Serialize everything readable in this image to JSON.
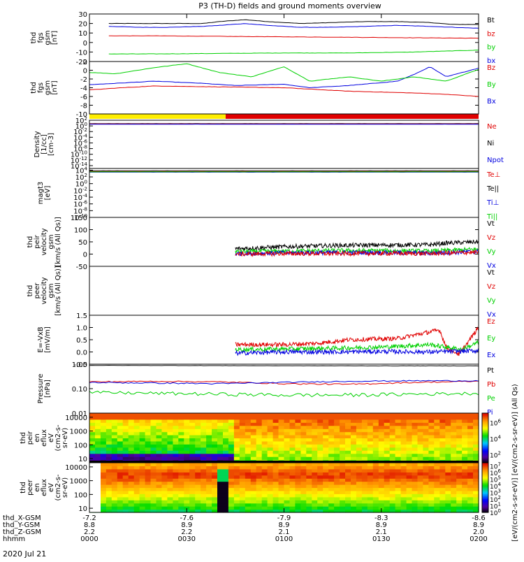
{
  "title": "P3 (TH-D) fields and ground moments overview",
  "date_label": "2020 Jul 21",
  "colors": {
    "black": "#000000",
    "red": "#e00000",
    "green": "#00d000",
    "blue": "#0000e0",
    "yellow": "#ffee00",
    "orange": "#ff9900"
  },
  "chart_data": {
    "type": "line",
    "x_range": [
      0,
      120
    ],
    "x_unit": "minutes since 00:00 UT",
    "bottom_axis": {
      "ticks_minutes": [
        0,
        30,
        60,
        90,
        120
      ],
      "row_labels": [
        "thd_X-GSM",
        "thd_Y-GSM",
        "thd_Z-GSM",
        "hhmm"
      ],
      "columns": [
        [
          "-7.2",
          "8.8",
          "2.2",
          "0000"
        ],
        [
          "-7.6",
          "8.9",
          "2.2",
          "0030"
        ],
        [
          "-7.9",
          "8.9",
          "2.1",
          "0100"
        ],
        [
          "-8.3",
          "8.9",
          "2.1",
          "0130"
        ],
        [
          "-8.6",
          "8.9",
          "2.0",
          "0200"
        ]
      ]
    },
    "mode_bar": [
      {
        "start": 0,
        "end": 42,
        "color": "yellow"
      },
      {
        "start": 42,
        "end": 120,
        "color": "red"
      }
    ],
    "panels": [
      {
        "ylabel": [
          "thd",
          "fgs",
          "gsm",
          "[nT]"
        ],
        "scale": "linear",
        "ylim": [
          -20,
          30
        ],
        "yticks": [
          -20,
          -10,
          0,
          10,
          20,
          30
        ],
        "ytick_labels": [
          "-20",
          "-10",
          "0",
          "10",
          "20",
          "30"
        ],
        "legend": [
          [
            "Bt",
            "black"
          ],
          [
            "bz",
            "red"
          ],
          [
            "by",
            "green"
          ],
          [
            "bx",
            "blue"
          ]
        ],
        "series": [
          {
            "name": "Bt",
            "color": "black",
            "x": [
              6,
              15,
              25,
              35,
              40,
              48,
              55,
              65,
              75,
              85,
              95,
              105,
              112,
              120
            ],
            "y": [
              20,
              20,
              20,
              20,
              22,
              24,
              22,
              20,
              21,
              22,
              22,
              21,
              19,
              19
            ]
          },
          {
            "name": "bx",
            "color": "blue",
            "x": [
              6,
              15,
              25,
              35,
              40,
              48,
              55,
              65,
              75,
              85,
              95,
              105,
              112,
              120
            ],
            "y": [
              17,
              16,
              16,
              17,
              18,
              20,
              18,
              16,
              16,
              17,
              18,
              17,
              16,
              15
            ]
          },
          {
            "name": "bz",
            "color": "red",
            "x": [
              6,
              20,
              40,
              60,
              80,
              100,
              120
            ],
            "y": [
              7,
              7,
              6.5,
              6,
              5.5,
              5,
              4.5
            ]
          },
          {
            "name": "by",
            "color": "green",
            "x": [
              6,
              20,
              40,
              60,
              80,
              100,
              120
            ],
            "y": [
              -12,
              -12,
              -11.5,
              -11,
              -11,
              -10,
              -8
            ]
          }
        ]
      },
      {
        "ylabel": [
          "thd",
          "fgs",
          "gsm",
          "[nT]"
        ],
        "scale": "linear",
        "ylim": [
          -10,
          2
        ],
        "yticks": [
          -10,
          -8,
          -6,
          -4,
          -2,
          0,
          2
        ],
        "ytick_labels": [
          "-10",
          "-8",
          "-6",
          "-4",
          "-2",
          "0",
          "2"
        ],
        "legend": [
          [
            "Bz",
            "red"
          ],
          [
            "By",
            "green"
          ],
          [
            "Bx",
            "blue"
          ]
        ],
        "series": [
          {
            "name": "Bx",
            "color": "blue",
            "x": [
              0,
              8,
              20,
              35,
              45,
              60,
              68,
              80,
              95,
              100,
              105,
              110,
              120
            ],
            "y": [
              -3.3,
              -3.0,
              -2.5,
              -3.0,
              -3.5,
              -3.2,
              -4.0,
              -3.5,
              -2.5,
              -1.0,
              0.8,
              -1.5,
              0.5
            ]
          },
          {
            "name": "By",
            "color": "green",
            "x": [
              0,
              8,
              20,
              30,
              40,
              50,
              60,
              68,
              80,
              90,
              100,
              110,
              120
            ],
            "y": [
              -0.5,
              -0.8,
              0.6,
              1.5,
              -0.5,
              -1.5,
              0.8,
              -2.5,
              -1.5,
              -2.5,
              -1.5,
              -2.5,
              0.2
            ]
          },
          {
            "name": "Bz",
            "color": "red",
            "x": [
              0,
              10,
              20,
              40,
              60,
              80,
              100,
              110,
              120
            ],
            "y": [
              -4.5,
              -4.0,
              -3.6,
              -3.8,
              -4.0,
              -4.8,
              -5.2,
              -5.5,
              -6.0
            ]
          }
        ]
      },
      {
        "ylabel": [
          "Density",
          "[1/cc]",
          "[cm-3]"
        ],
        "scale": "log",
        "ylim_exp": [
          -15,
          2
        ],
        "ytick_exps": [
          2,
          0,
          -2,
          -4,
          -6,
          -8,
          -10,
          -12,
          -14
        ],
        "legend": [
          [
            "Ne",
            "red"
          ],
          [
            "Ni",
            "black"
          ],
          [
            "Npot",
            "blue"
          ]
        ],
        "series": [
          {
            "name": "Ni",
            "color": "black",
            "x": [
              0,
              120
            ],
            "y_exp": [
              0.8,
              0.8
            ]
          },
          {
            "name": "Ne",
            "color": "red",
            "x": [
              0,
              120
            ],
            "y_exp": [
              0.7,
              0.7
            ]
          },
          {
            "name": "Npot",
            "color": "blue",
            "x": [
              0,
              120
            ],
            "y_exp": [
              0.6,
              0.6
            ]
          }
        ]
      },
      {
        "ylabel": [
          "magt3",
          "[eV]"
        ],
        "scale": "log",
        "ylim_exp": [
          -10,
          4.5
        ],
        "ytick_exps": [
          4,
          2,
          0,
          -2,
          -4,
          -6,
          -8,
          -10
        ],
        "legend": [
          [
            "Te⊥",
            "red"
          ],
          [
            "Te||",
            "black"
          ],
          [
            "Ti⊥",
            "blue"
          ],
          [
            "Ti||",
            "green"
          ]
        ],
        "series": [
          {
            "name": "Te||",
            "color": "black",
            "x": [
              0,
              120
            ],
            "y_exp": [
              3.8,
              3.8
            ]
          },
          {
            "name": "Te⊥",
            "color": "red",
            "x": [
              0,
              120
            ],
            "y_exp": [
              3.6,
              3.6
            ]
          },
          {
            "name": "Ti⊥",
            "color": "blue",
            "x": [
              0,
              120
            ],
            "y_exp": [
              3.4,
              3.4
            ]
          },
          {
            "name": "Ti||",
            "color": "green",
            "x": [
              0,
              120
            ],
            "y_exp": [
              3.5,
              3.5
            ]
          }
        ]
      },
      {
        "ylabel": [
          "thd",
          "peir",
          "velocity",
          "gsm",
          "[km/s (All Qs)]"
        ],
        "scale": "linear",
        "ylim": [
          -50,
          150
        ],
        "yticks": [
          -50,
          0,
          50,
          100,
          150
        ],
        "ytick_labels": [
          "-50",
          "0",
          "50",
          "100",
          "150"
        ],
        "legend": [
          [
            "Vt",
            "black"
          ],
          [
            "Vz",
            "red"
          ],
          [
            "Vy",
            "green"
          ],
          [
            "Vx",
            "blue"
          ]
        ],
        "series": [
          {
            "name": "Vt",
            "color": "black",
            "noisy": true,
            "x": [
              45,
              60,
              75,
              90,
              105,
              110,
              120
            ],
            "y": [
              22,
              30,
              35,
              37,
              38,
              45,
              50
            ]
          },
          {
            "name": "Vy",
            "color": "green",
            "noisy": true,
            "x": [
              45,
              60,
              75,
              90,
              105,
              120
            ],
            "y": [
              10,
              12,
              14,
              14,
              12,
              20
            ]
          },
          {
            "name": "Vx",
            "color": "blue",
            "noisy": true,
            "x": [
              45,
              60,
              75,
              90,
              105,
              120
            ],
            "y": [
              2,
              5,
              6,
              6,
              4,
              10
            ]
          },
          {
            "name": "Vz",
            "color": "red",
            "noisy": true,
            "x": [
              45,
              60,
              75,
              90,
              105,
              120
            ],
            "y": [
              0,
              2,
              2,
              3,
              2,
              8
            ]
          }
        ]
      },
      {
        "ylabel": [
          "thd",
          "peer",
          "velocity",
          "gsm",
          "[km/s (All Qs)]"
        ],
        "scale": "linear",
        "ylim": [
          -50,
          150
        ],
        "yticks": [],
        "ytick_labels": [],
        "legend": [
          [
            "Vt",
            "black"
          ],
          [
            "Vz",
            "red"
          ],
          [
            "Vy",
            "green"
          ],
          [
            "Vx",
            "blue"
          ]
        ],
        "series": []
      },
      {
        "ylabel": [
          "E=-VxB",
          "[mV/m]"
        ],
        "scale": "linear",
        "ylim": [
          -0.5,
          1.5
        ],
        "yticks": [
          -0.5,
          0.0,
          0.5,
          1.0,
          1.5
        ],
        "ytick_labels": [
          "-0.5",
          "0.0",
          "0.5",
          "1.0",
          "1.5"
        ],
        "legend": [
          [
            "Ez",
            "red"
          ],
          [
            "Ey",
            "green"
          ],
          [
            "Ex",
            "blue"
          ]
        ],
        "series": [
          {
            "name": "Ez",
            "color": "red",
            "noisy": true,
            "x": [
              45,
              60,
              70,
              80,
              95,
              108,
              110,
              114,
              120
            ],
            "y": [
              0.3,
              0.3,
              0.35,
              0.5,
              0.55,
              0.9,
              0.2,
              -0.1,
              1.0
            ]
          },
          {
            "name": "Ey",
            "color": "green",
            "noisy": true,
            "x": [
              45,
              60,
              75,
              90,
              105,
              115,
              120
            ],
            "y": [
              0.1,
              0.12,
              0.15,
              0.2,
              0.3,
              0.1,
              0.4
            ]
          },
          {
            "name": "Ex",
            "color": "blue",
            "noisy": true,
            "x": [
              45,
              60,
              75,
              90,
              105,
              120
            ],
            "y": [
              -0.05,
              0.0,
              0.0,
              0.02,
              0.0,
              0.05
            ]
          }
        ]
      },
      {
        "ylabel": [
          "Pressure",
          "[nPa]"
        ],
        "scale": "log",
        "ylim_exp": [
          -2,
          0
        ],
        "ytick_exps": [
          0,
          -1,
          -2
        ],
        "ytick_labels": [
          "1.00",
          "0.10",
          "0.01"
        ],
        "legend": [
          [
            "Pt",
            "black"
          ],
          [
            "Pb",
            "red"
          ],
          [
            "Pe",
            "green"
          ],
          [
            "Pi",
            "blue"
          ]
        ],
        "series": [
          {
            "name": "Pt",
            "color": "black",
            "x": [
              0,
              30,
              60,
              90,
              120
            ],
            "y": [
              0.9,
              0.88,
              0.86,
              0.85,
              0.85
            ]
          },
          {
            "name": "Pb",
            "color": "red",
            "x": [
              0,
              20,
              40,
              60,
              80,
              100,
              120
            ],
            "y": [
              0.19,
              0.2,
              0.19,
              0.16,
              0.15,
              0.18,
              0.2
            ]
          },
          {
            "name": "Pi",
            "color": "blue",
            "x": [
              0,
              20,
              40,
              60,
              80,
              100,
              120
            ],
            "y": [
              0.18,
              0.17,
              0.16,
              0.18,
              0.2,
              0.21,
              0.21
            ]
          },
          {
            "name": "Pe",
            "color": "green",
            "x": [
              0,
              20,
              40,
              60,
              80,
              100,
              120
            ],
            "y": [
              0.07,
              0.065,
              0.06,
              0.055,
              0.055,
              0.06,
              0.065
            ]
          }
        ]
      },
      {
        "ylabel": [
          "thd",
          "peir",
          "en",
          "eflux",
          "eV",
          "(cm2-s-",
          "sr-eV)"
        ],
        "scale": "log",
        "type": "heatmap",
        "ylim_exp": [
          0.7,
          4.3
        ],
        "ytick_values": [
          10000,
          1000,
          100,
          10
        ],
        "ytick_labels": [
          "10000",
          "1000",
          "100",
          "10"
        ]
      },
      {
        "ylabel": [
          "thd",
          "peer",
          "en",
          "eflux",
          "eV",
          "(cm2-s-",
          "sr-eV)"
        ],
        "scale": "log",
        "type": "heatmap",
        "ylim_exp": [
          0.7,
          4.3
        ],
        "ytick_values": [
          10000,
          1000,
          100,
          10
        ],
        "ytick_labels": [
          "10000",
          "1000",
          "100",
          "10"
        ]
      }
    ],
    "colorbars": [
      {
        "exp_labels": [
          "6",
          "4",
          "2"
        ],
        "range_exp": [
          1,
          7.2
        ]
      },
      {
        "exp_labels": [
          "7",
          "6",
          "5",
          "4",
          "3",
          "2",
          "1",
          "0"
        ],
        "range_exp": [
          0,
          7.5
        ]
      }
    ],
    "colorbar_title": "[eV/(cm2-s-sr-eV)] [eV/(cm2-s-sr-eV)] (All Qs)"
  }
}
